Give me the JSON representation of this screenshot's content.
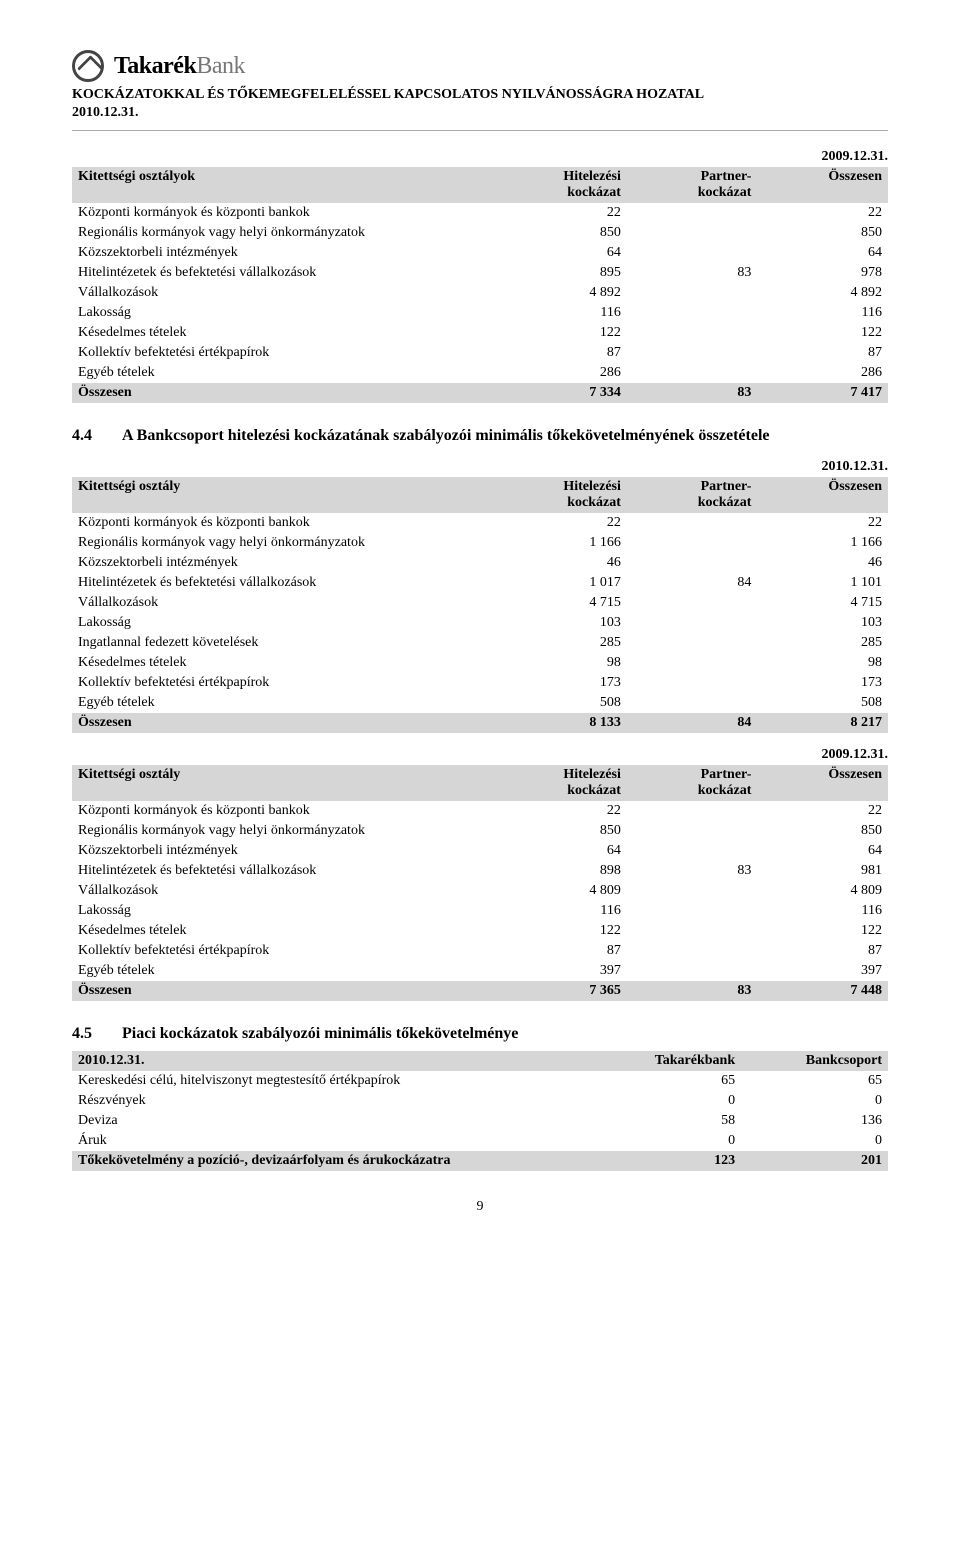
{
  "header": {
    "logo_main": "Takarék",
    "logo_sub": "Bank",
    "title_line1": "KOCKÁZATOKKAL ÉS TŐKEMEGFELELÉSSEL KAPCSOLATOS NYILVÁNOSSÁGRA HOZATAL",
    "title_line2": "2010.12.31."
  },
  "table1": {
    "date": "2009.12.31.",
    "head": {
      "c0": "Kitettségi osztályok",
      "c1a": "Hitelezési",
      "c1b": "kockázat",
      "c2a": "Partner-",
      "c2b": "kockázat",
      "c3": "Összesen"
    },
    "rows": [
      {
        "label": "Központi kormányok és központi bankok",
        "v1": "22",
        "v2": "",
        "v3": "22"
      },
      {
        "label": "Regionális kormányok vagy helyi önkormányzatok",
        "v1": "850",
        "v2": "",
        "v3": "850"
      },
      {
        "label": "Közszektorbeli intézmények",
        "v1": "64",
        "v2": "",
        "v3": "64"
      },
      {
        "label": "Hitelintézetek és befektetési vállalkozások",
        "v1": "895",
        "v2": "83",
        "v3": "978"
      },
      {
        "label": "Vállalkozások",
        "v1": "4 892",
        "v2": "",
        "v3": "4 892"
      },
      {
        "label": "Lakosság",
        "v1": "116",
        "v2": "",
        "v3": "116"
      },
      {
        "label": "Késedelmes tételek",
        "v1": "122",
        "v2": "",
        "v3": "122"
      },
      {
        "label": "Kollektív befektetési értékpapírok",
        "v1": "87",
        "v2": "",
        "v3": "87"
      },
      {
        "label": "Egyéb tételek",
        "v1": "286",
        "v2": "",
        "v3": "286"
      }
    ],
    "total": {
      "label": "Összesen",
      "v1": "7 334",
      "v2": "83",
      "v3": "7 417"
    }
  },
  "section44": {
    "num": "4.4",
    "title": "A Bankcsoport hitelezési kockázatának szabályozói minimális tőkekövetelményének összetétele"
  },
  "table2": {
    "date": "2010.12.31.",
    "head": {
      "c0": "Kitettségi osztály",
      "c1a": "Hitelezési",
      "c1b": "kockázat",
      "c2a": "Partner-",
      "c2b": "kockázat",
      "c3": "Összesen"
    },
    "rows": [
      {
        "label": "Központi kormányok és központi bankok",
        "v1": "22",
        "v2": "",
        "v3": "22"
      },
      {
        "label": "Regionális kormányok vagy helyi önkormányzatok",
        "v1": "1 166",
        "v2": "",
        "v3": "1 166"
      },
      {
        "label": "Közszektorbeli intézmények",
        "v1": "46",
        "v2": "",
        "v3": "46"
      },
      {
        "label": "Hitelintézetek és befektetési vállalkozások",
        "v1": "1 017",
        "v2": "84",
        "v3": "1 101"
      },
      {
        "label": "Vállalkozások",
        "v1": "4 715",
        "v2": "",
        "v3": "4 715"
      },
      {
        "label": "Lakosság",
        "v1": "103",
        "v2": "",
        "v3": "103"
      },
      {
        "label": "Ingatlannal fedezett követelések",
        "v1": "285",
        "v2": "",
        "v3": "285"
      },
      {
        "label": "Késedelmes tételek",
        "v1": "98",
        "v2": "",
        "v3": "98"
      },
      {
        "label": "Kollektív befektetési értékpapírok",
        "v1": "173",
        "v2": "",
        "v3": "173"
      },
      {
        "label": "Egyéb tételek",
        "v1": "508",
        "v2": "",
        "v3": "508"
      }
    ],
    "total": {
      "label": "Összesen",
      "v1": "8 133",
      "v2": "84",
      "v3": "8 217"
    }
  },
  "table3": {
    "date": "2009.12.31.",
    "head": {
      "c0": "Kitettségi osztály",
      "c1a": "Hitelezési",
      "c1b": "kockázat",
      "c2a": "Partner-",
      "c2b": "kockázat",
      "c3": "Összesen"
    },
    "rows": [
      {
        "label": "Központi kormányok és központi bankok",
        "v1": "22",
        "v2": "",
        "v3": "22"
      },
      {
        "label": "Regionális kormányok vagy helyi önkormányzatok",
        "v1": "850",
        "v2": "",
        "v3": "850"
      },
      {
        "label": "Közszektorbeli intézmények",
        "v1": "64",
        "v2": "",
        "v3": "64"
      },
      {
        "label": "Hitelintézetek és befektetési vállalkozások",
        "v1": "898",
        "v2": "83",
        "v3": "981"
      },
      {
        "label": "Vállalkozások",
        "v1": "4 809",
        "v2": "",
        "v3": "4 809"
      },
      {
        "label": "Lakosság",
        "v1": "116",
        "v2": "",
        "v3": "116"
      },
      {
        "label": "Késedelmes tételek",
        "v1": "122",
        "v2": "",
        "v3": "122"
      },
      {
        "label": "Kollektív befektetési értékpapírok",
        "v1": "87",
        "v2": "",
        "v3": "87"
      },
      {
        "label": "Egyéb tételek",
        "v1": "397",
        "v2": "",
        "v3": "397"
      }
    ],
    "total": {
      "label": "Összesen",
      "v1": "7 365",
      "v2": "83",
      "v3": "7 448"
    }
  },
  "section45": {
    "num": "4.5",
    "title": "Piaci kockázatok szabályozói minimális tőkekövetelménye"
  },
  "table4": {
    "head": {
      "c0": "2010.12.31.",
      "c1": "Takarékbank",
      "c2": "Bankcsoport"
    },
    "rows": [
      {
        "label": "Kereskedési célú, hitelviszonyt megtestesítő értékpapírok",
        "v1": "65",
        "v2": "65"
      },
      {
        "label": "Részvények",
        "v1": "0",
        "v2": "0"
      },
      {
        "label": "Deviza",
        "v1": "58",
        "v2": "136"
      },
      {
        "label": "Áruk",
        "v1": "0",
        "v2": "0"
      }
    ],
    "total": {
      "label": "Tőkekövetelmény a pozíció-, devizaárfolyam és árukockázatra",
      "v1": "123",
      "v2": "201"
    }
  },
  "pagenum": "9"
}
